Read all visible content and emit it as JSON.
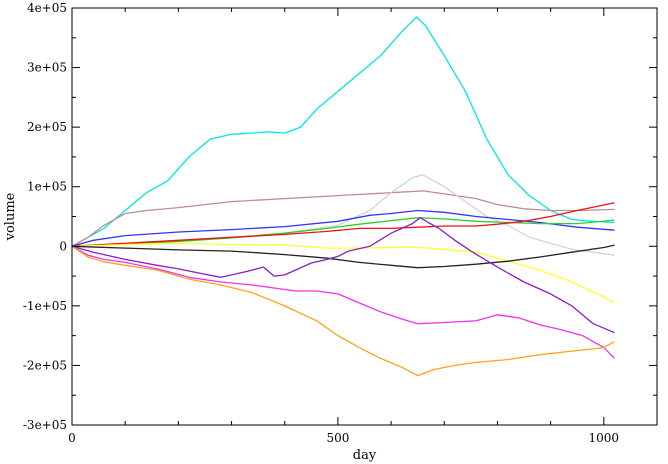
{
  "chart_data": {
    "type": "line",
    "title": "",
    "xlabel": "day",
    "ylabel": "volume",
    "xlim": [
      0,
      1100
    ],
    "ylim": [
      -300000,
      400000
    ],
    "x_major_ticks": [
      0,
      500,
      1000
    ],
    "x_minor_step": 100,
    "y_major_ticks": [
      -300000,
      -200000,
      -100000,
      0,
      100000,
      200000,
      300000,
      400000
    ],
    "y_minor_step": 50000,
    "x_tick_labels": [
      "0",
      "500",
      "1000"
    ],
    "y_tick_labels": [
      "-3e+05",
      "-2e+05",
      "-1e+05",
      "0",
      "1e+05",
      "2e+05",
      "3e+05",
      "4e+05"
    ],
    "grid": false,
    "legend": "none",
    "series": [
      {
        "color": "#00e5e5",
        "points": [
          [
            0,
            0
          ],
          [
            30,
            15000
          ],
          [
            60,
            30000
          ],
          [
            100,
            60000
          ],
          [
            140,
            90000
          ],
          [
            180,
            110000
          ],
          [
            220,
            150000
          ],
          [
            260,
            180000
          ],
          [
            300,
            188000
          ],
          [
            340,
            190000
          ],
          [
            370,
            192000
          ],
          [
            400,
            190000
          ],
          [
            430,
            200000
          ],
          [
            460,
            230000
          ],
          [
            500,
            260000
          ],
          [
            540,
            290000
          ],
          [
            580,
            320000
          ],
          [
            620,
            360000
          ],
          [
            648,
            385000
          ],
          [
            665,
            370000
          ],
          [
            700,
            320000
          ],
          [
            740,
            260000
          ],
          [
            780,
            180000
          ],
          [
            820,
            120000
          ],
          [
            860,
            85000
          ],
          [
            900,
            60000
          ],
          [
            940,
            45000
          ],
          [
            980,
            42000
          ],
          [
            1020,
            40000
          ]
        ]
      },
      {
        "color": "#bc8f8f",
        "points": [
          [
            0,
            0
          ],
          [
            30,
            15000
          ],
          [
            60,
            35000
          ],
          [
            100,
            55000
          ],
          [
            140,
            60000
          ],
          [
            200,
            65000
          ],
          [
            300,
            75000
          ],
          [
            400,
            80000
          ],
          [
            500,
            85000
          ],
          [
            600,
            90000
          ],
          [
            660,
            93000
          ],
          [
            700,
            88000
          ],
          [
            760,
            80000
          ],
          [
            800,
            70000
          ],
          [
            850,
            63000
          ],
          [
            900,
            60000
          ],
          [
            960,
            60000
          ],
          [
            1020,
            62000
          ]
        ]
      },
      {
        "color": "#d3d3d3",
        "points": [
          [
            0,
            0
          ],
          [
            100,
            5000
          ],
          [
            200,
            8000
          ],
          [
            300,
            15000
          ],
          [
            400,
            22000
          ],
          [
            500,
            35000
          ],
          [
            560,
            60000
          ],
          [
            600,
            90000
          ],
          [
            640,
            115000
          ],
          [
            660,
            120000
          ],
          [
            700,
            100000
          ],
          [
            740,
            75000
          ],
          [
            780,
            50000
          ],
          [
            820,
            35000
          ],
          [
            860,
            15000
          ],
          [
            900,
            5000
          ],
          [
            940,
            -5000
          ],
          [
            980,
            -10000
          ],
          [
            1020,
            -15000
          ]
        ]
      },
      {
        "color": "#3333ff",
        "points": [
          [
            0,
            0
          ],
          [
            40,
            10000
          ],
          [
            100,
            18000
          ],
          [
            200,
            24000
          ],
          [
            300,
            28000
          ],
          [
            400,
            33000
          ],
          [
            500,
            42000
          ],
          [
            560,
            52000
          ],
          [
            600,
            55000
          ],
          [
            650,
            60000
          ],
          [
            700,
            57000
          ],
          [
            760,
            50000
          ],
          [
            820,
            45000
          ],
          [
            880,
            40000
          ],
          [
            950,
            32000
          ],
          [
            1020,
            27000
          ]
        ]
      },
      {
        "color": "#33cc33",
        "points": [
          [
            0,
            0
          ],
          [
            50,
            2000
          ],
          [
            100,
            4000
          ],
          [
            200,
            8000
          ],
          [
            300,
            14000
          ],
          [
            400,
            22000
          ],
          [
            480,
            30000
          ],
          [
            540,
            37000
          ],
          [
            600,
            43000
          ],
          [
            650,
            48000
          ],
          [
            700,
            46000
          ],
          [
            760,
            42000
          ],
          [
            820,
            40000
          ],
          [
            880,
            38000
          ],
          [
            950,
            38000
          ],
          [
            1020,
            44000
          ]
        ]
      },
      {
        "color": "#ee1111",
        "points": [
          [
            0,
            0
          ],
          [
            100,
            5000
          ],
          [
            200,
            10000
          ],
          [
            300,
            15000
          ],
          [
            400,
            20000
          ],
          [
            480,
            25000
          ],
          [
            540,
            30000
          ],
          [
            600,
            30000
          ],
          [
            650,
            32000
          ],
          [
            700,
            34000
          ],
          [
            760,
            34000
          ],
          [
            800,
            37000
          ],
          [
            850,
            42000
          ],
          [
            900,
            50000
          ],
          [
            950,
            60000
          ],
          [
            1020,
            73000
          ]
        ]
      },
      {
        "color": "#ffff33",
        "points": [
          [
            0,
            0
          ],
          [
            100,
            3000
          ],
          [
            200,
            5000
          ],
          [
            300,
            3000
          ],
          [
            400,
            2000
          ],
          [
            480,
            -3000
          ],
          [
            540,
            -3000
          ],
          [
            600,
            -2000
          ],
          [
            660,
            -2000
          ],
          [
            700,
            -5000
          ],
          [
            760,
            -10000
          ],
          [
            820,
            -25000
          ],
          [
            880,
            -40000
          ],
          [
            940,
            -60000
          ],
          [
            1000,
            -85000
          ],
          [
            1020,
            -95000
          ]
        ]
      },
      {
        "color": "#222222",
        "points": [
          [
            0,
            0
          ],
          [
            100,
            -3000
          ],
          [
            200,
            -6000
          ],
          [
            300,
            -8000
          ],
          [
            400,
            -14000
          ],
          [
            480,
            -20000
          ],
          [
            540,
            -27000
          ],
          [
            600,
            -32000
          ],
          [
            650,
            -36000
          ],
          [
            700,
            -34000
          ],
          [
            760,
            -30000
          ],
          [
            820,
            -25000
          ],
          [
            880,
            -18000
          ],
          [
            940,
            -10000
          ],
          [
            1000,
            -2000
          ],
          [
            1020,
            2000
          ]
        ]
      },
      {
        "color": "#8b1fbf",
        "points": [
          [
            0,
            0
          ],
          [
            40,
            -10000
          ],
          [
            100,
            -22000
          ],
          [
            160,
            -32000
          ],
          [
            200,
            -38000
          ],
          [
            250,
            -47000
          ],
          [
            280,
            -52000
          ],
          [
            300,
            -48000
          ],
          [
            330,
            -42000
          ],
          [
            360,
            -35000
          ],
          [
            380,
            -50000
          ],
          [
            400,
            -48000
          ],
          [
            420,
            -40000
          ],
          [
            450,
            -28000
          ],
          [
            480,
            -22000
          ],
          [
            500,
            -17000
          ],
          [
            520,
            -8000
          ],
          [
            560,
            0
          ],
          [
            600,
            22000
          ],
          [
            640,
            38000
          ],
          [
            655,
            48000
          ],
          [
            670,
            40000
          ],
          [
            690,
            30000
          ],
          [
            720,
            10000
          ],
          [
            750,
            -8000
          ],
          [
            800,
            -35000
          ],
          [
            850,
            -60000
          ],
          [
            900,
            -80000
          ],
          [
            940,
            -100000
          ],
          [
            980,
            -130000
          ],
          [
            1020,
            -145000
          ]
        ]
      },
      {
        "color": "#ee33ee",
        "points": [
          [
            0,
            0
          ],
          [
            30,
            -15000
          ],
          [
            60,
            -22000
          ],
          [
            100,
            -27000
          ],
          [
            160,
            -38000
          ],
          [
            220,
            -52000
          ],
          [
            280,
            -60000
          ],
          [
            340,
            -65000
          ],
          [
            380,
            -70000
          ],
          [
            420,
            -75000
          ],
          [
            460,
            -75000
          ],
          [
            500,
            -80000
          ],
          [
            540,
            -95000
          ],
          [
            580,
            -110000
          ],
          [
            620,
            -122000
          ],
          [
            650,
            -130000
          ],
          [
            700,
            -128000
          ],
          [
            760,
            -125000
          ],
          [
            800,
            -115000
          ],
          [
            840,
            -120000
          ],
          [
            880,
            -132000
          ],
          [
            920,
            -140000
          ],
          [
            960,
            -150000
          ],
          [
            1000,
            -170000
          ],
          [
            1020,
            -188000
          ]
        ]
      },
      {
        "color": "#ffa31a",
        "points": [
          [
            0,
            0
          ],
          [
            30,
            -18000
          ],
          [
            60,
            -26000
          ],
          [
            100,
            -32000
          ],
          [
            160,
            -40000
          ],
          [
            220,
            -55000
          ],
          [
            280,
            -65000
          ],
          [
            340,
            -78000
          ],
          [
            400,
            -100000
          ],
          [
            460,
            -125000
          ],
          [
            500,
            -150000
          ],
          [
            540,
            -170000
          ],
          [
            580,
            -188000
          ],
          [
            620,
            -203000
          ],
          [
            650,
            -217000
          ],
          [
            680,
            -207000
          ],
          [
            720,
            -200000
          ],
          [
            760,
            -195000
          ],
          [
            820,
            -190000
          ],
          [
            880,
            -182000
          ],
          [
            940,
            -176000
          ],
          [
            1000,
            -170000
          ],
          [
            1020,
            -160000
          ]
        ]
      }
    ]
  }
}
